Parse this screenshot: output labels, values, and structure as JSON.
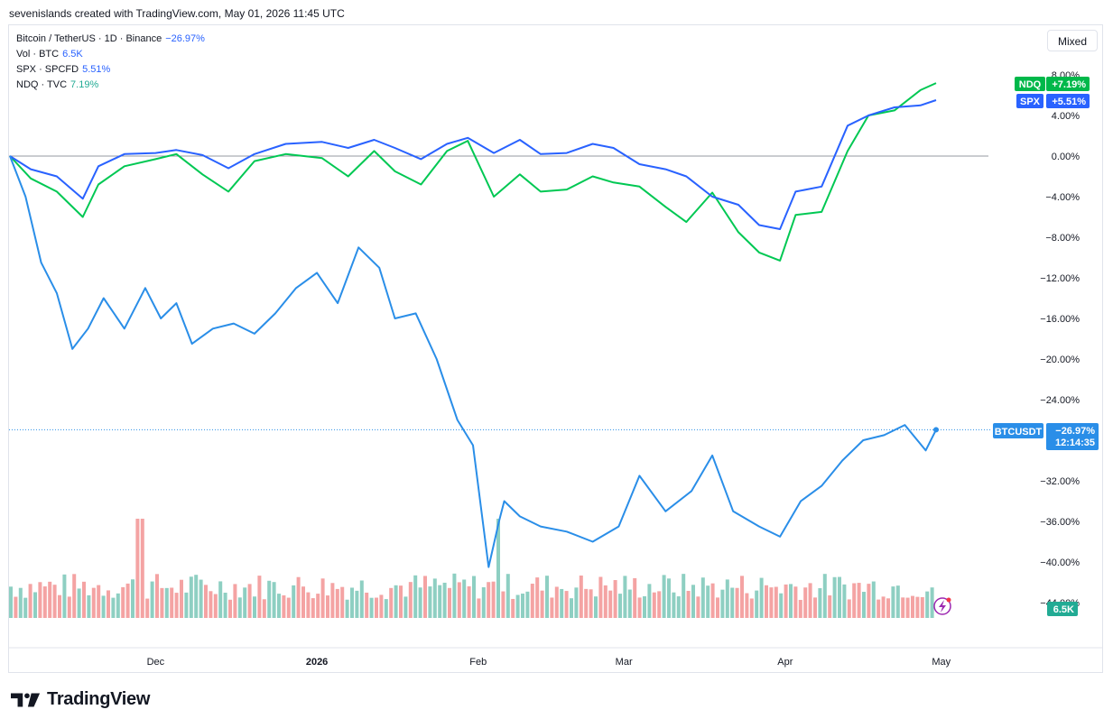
{
  "credit": "sevenislands created with TradingView.com, May 01, 2026 11:45 UTC",
  "legend": [
    {
      "label": "Bitcoin / TetherUS · 1D · Binance",
      "value": "−26.97%",
      "color": "#2962ff"
    },
    {
      "label": "Vol · BTC",
      "value": "6.5K",
      "color": "#2962ff"
    },
    {
      "label": "SPX · SPCFD",
      "value": "5.51%",
      "color": "#2962ff"
    },
    {
      "label": "NDQ · TVC",
      "value": "7.19%",
      "color": "#22ab94"
    }
  ],
  "scale_mode": "Mixed",
  "brand": "TradingView",
  "badges": {
    "ndq": {
      "name": "NDQ",
      "value": "+7.19%",
      "color": "#00b84a"
    },
    "spx": {
      "name": "SPX",
      "value": "+5.51%",
      "color": "#2962ff"
    },
    "btc": {
      "name": "BTCUSDT",
      "value": "−26.97%",
      "time": "12:14:35",
      "color": "#2a8ee8"
    },
    "vol": {
      "value": "6.5K",
      "color": "#22ab94"
    }
  },
  "chart_data": {
    "type": "line",
    "y_axis": {
      "ticks": [
        "8.00%",
        "4.00%",
        "0.00%",
        "−4.00%",
        "−8.00%",
        "−12.00%",
        "−16.00%",
        "−20.00%",
        "−24.00%",
        "−32.00%",
        "−36.00%",
        "−40.00%",
        "−44.00%"
      ],
      "tick_values": [
        8,
        4,
        0,
        -4,
        -8,
        -12,
        -16,
        -20,
        -24,
        -32,
        -36,
        -40,
        -44
      ]
    },
    "x_axis": {
      "labels": [
        "Dec",
        "2026",
        "Feb",
        "Mar",
        "Apr",
        "May"
      ],
      "label_dates": [
        "2025-12-01",
        "2026-01-01",
        "2026-02-01",
        "2026-03-01",
        "2026-04-01",
        "2026-05-01"
      ]
    },
    "series": [
      {
        "name": "NDQ",
        "color": "#00c853",
        "dates": [
          "2025-11-03",
          "2025-11-07",
          "2025-11-12",
          "2025-11-17",
          "2025-11-20",
          "2025-11-25",
          "2025-12-01",
          "2025-12-05",
          "2025-12-10",
          "2025-12-15",
          "2025-12-20",
          "2025-12-26",
          "2026-01-02",
          "2026-01-07",
          "2026-01-12",
          "2026-01-16",
          "2026-01-21",
          "2026-01-26",
          "2026-01-30",
          "2026-02-04",
          "2026-02-09",
          "2026-02-13",
          "2026-02-18",
          "2026-02-23",
          "2026-02-27",
          "2026-03-04",
          "2026-03-09",
          "2026-03-13",
          "2026-03-18",
          "2026-03-23",
          "2026-03-27",
          "2026-03-31",
          "2026-04-03",
          "2026-04-08",
          "2026-04-13",
          "2026-04-17",
          "2026-04-22",
          "2026-04-27",
          "2026-04-30"
        ],
        "values": [
          0,
          -2.2,
          -3.5,
          -6.0,
          -2.8,
          -1.0,
          -0.3,
          0.2,
          -1.8,
          -3.5,
          -0.5,
          0.2,
          -0.2,
          -2.0,
          0.5,
          -1.5,
          -2.8,
          0.5,
          1.5,
          -4.0,
          -1.8,
          -3.5,
          -3.3,
          -2.0,
          -2.6,
          -3.0,
          -5.0,
          -6.5,
          -3.6,
          -7.5,
          -9.5,
          -10.3,
          -5.8,
          -5.5,
          0.5,
          4.0,
          4.5,
          6.5,
          7.19
        ]
      },
      {
        "name": "SPX",
        "color": "#2962ff",
        "dates": [
          "2025-11-03",
          "2025-11-07",
          "2025-11-12",
          "2025-11-17",
          "2025-11-20",
          "2025-11-25",
          "2025-12-01",
          "2025-12-05",
          "2025-12-10",
          "2025-12-15",
          "2025-12-20",
          "2025-12-26",
          "2026-01-02",
          "2026-01-07",
          "2026-01-12",
          "2026-01-16",
          "2026-01-21",
          "2026-01-26",
          "2026-01-30",
          "2026-02-04",
          "2026-02-09",
          "2026-02-13",
          "2026-02-18",
          "2026-02-23",
          "2026-02-27",
          "2026-03-04",
          "2026-03-09",
          "2026-03-13",
          "2026-03-18",
          "2026-03-23",
          "2026-03-27",
          "2026-03-31",
          "2026-04-03",
          "2026-04-08",
          "2026-04-13",
          "2026-04-17",
          "2026-04-22",
          "2026-04-27",
          "2026-04-30"
        ],
        "values": [
          0,
          -1.3,
          -2.0,
          -4.2,
          -1.0,
          0.2,
          0.3,
          0.6,
          0.1,
          -1.2,
          0.2,
          1.2,
          1.4,
          0.8,
          1.6,
          0.8,
          -0.3,
          1.2,
          1.8,
          0.3,
          1.6,
          0.2,
          0.3,
          1.2,
          0.8,
          -0.8,
          -1.3,
          -2.0,
          -4.0,
          -4.8,
          -6.8,
          -7.2,
          -3.5,
          -3.0,
          3.0,
          4.0,
          4.8,
          5.0,
          5.51
        ]
      },
      {
        "name": "BTCUSDT",
        "color": "#2a8ee8",
        "dates": [
          "2025-11-03",
          "2025-11-06",
          "2025-11-09",
          "2025-11-12",
          "2025-11-15",
          "2025-11-18",
          "2025-11-21",
          "2025-11-25",
          "2025-11-29",
          "2025-12-02",
          "2025-12-05",
          "2025-12-08",
          "2025-12-12",
          "2025-12-16",
          "2025-12-20",
          "2025-12-24",
          "2025-12-28",
          "2026-01-01",
          "2026-01-05",
          "2026-01-09",
          "2026-01-13",
          "2026-01-16",
          "2026-01-20",
          "2026-01-24",
          "2026-01-28",
          "2026-01-31",
          "2026-02-03",
          "2026-02-05",
          "2026-02-06",
          "2026-02-09",
          "2026-02-13",
          "2026-02-18",
          "2026-02-23",
          "2026-02-28",
          "2026-03-04",
          "2026-03-09",
          "2026-03-14",
          "2026-03-18",
          "2026-03-22",
          "2026-03-27",
          "2026-03-31",
          "2026-04-04",
          "2026-04-08",
          "2026-04-12",
          "2026-04-16",
          "2026-04-20",
          "2026-04-24",
          "2026-04-28",
          "2026-04-30"
        ],
        "values": [
          0,
          -4.0,
          -10.5,
          -13.5,
          -19.0,
          -17.0,
          -14.0,
          -17.0,
          -13.0,
          -16.0,
          -14.5,
          -18.5,
          -17.0,
          -16.5,
          -17.5,
          -15.5,
          -13.0,
          -11.5,
          -14.5,
          -9.0,
          -11.0,
          -16.0,
          -15.5,
          -20.0,
          -26.0,
          -28.5,
          -40.5,
          -36.0,
          -34.0,
          -35.5,
          -36.5,
          -37.0,
          -38.0,
          -36.5,
          -31.5,
          -35.0,
          -33.0,
          -29.5,
          -35.0,
          -36.5,
          -37.5,
          -34.0,
          -32.5,
          -30.0,
          -28.0,
          -27.5,
          -26.5,
          -29.0,
          -26.97
        ]
      }
    ],
    "volume": {
      "name": "Vol · BTC",
      "up_color": "#8ecfc2",
      "down_color": "#f4a3a3",
      "spike_dates": [
        "2025-11-28",
        "2026-02-05"
      ]
    }
  }
}
